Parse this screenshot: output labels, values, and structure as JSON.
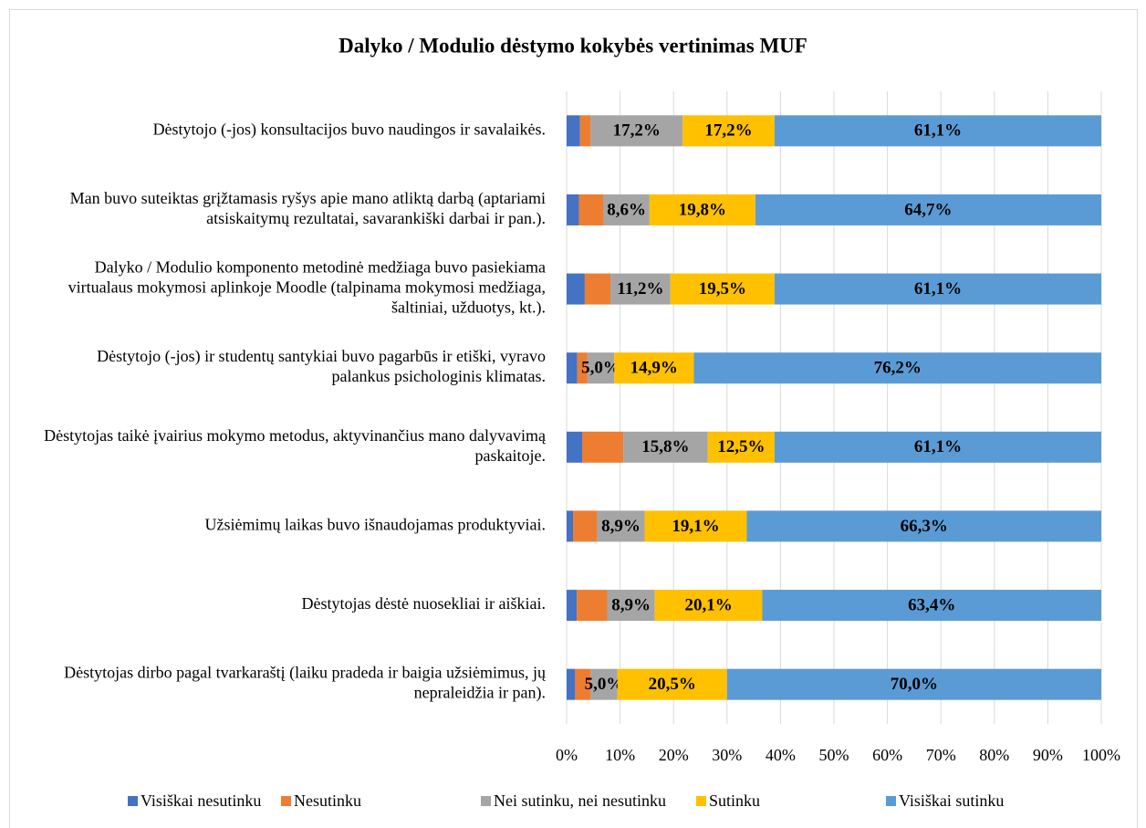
{
  "chart_data": {
    "type": "stacked-bar-horizontal",
    "title": "Dalyko / Modulio dėstymo kokybės vertinimas MUF",
    "categories": [
      "Dėstytojo (-jos) konsultacijos buvo naudingos ir savalaikės.",
      "Man buvo suteiktas grįžtamasis ryšys apie mano atliktą darbą (aptariami atsiskaitymų rezultatai, savarankiški darbai ir pan.).",
      "Dalyko / Modulio komponento metodinė medžiaga buvo pasiekiama virtualaus mokymosi aplinkoje Moodle (talpinama mokymosi medžiaga, šaltiniai, užduotys, kt.).",
      "Dėstytojo (-jos) ir studentų santykiai buvo pagarbūs ir etiški, vyravo palankus psichologinis klimatas.",
      "Dėstytojas taikė įvairius mokymo metodus, aktyvinančius mano dalyvavimą paskaitoje.",
      "Užsiėmimų laikas buvo išnaudojamas produktyviai.",
      "Dėstytojas dėstė nuosekliai ir aiškiai.",
      "Dėstytojas dirbo pagal tvarkaraštį (laiku pradeda ir baigia užsiėmimus, jų nepraleidžia ir pan)."
    ],
    "series": [
      {
        "name": "Visiškai nesutinku",
        "color": "#4472c4",
        "values": [
          2.5,
          2.3,
          3.4,
          2.0,
          2.9,
          1.2,
          1.9,
          1.6
        ],
        "value_labels": [
          null,
          null,
          null,
          null,
          null,
          null,
          null,
          null
        ]
      },
      {
        "name": "Nesutinku",
        "color": "#ed7d31",
        "values": [
          2.0,
          4.6,
          4.8,
          1.9,
          7.7,
          4.5,
          5.7,
          2.9
        ],
        "value_labels": [
          null,
          null,
          null,
          null,
          null,
          null,
          null,
          null
        ]
      },
      {
        "name": "Nei sutinku, nei nesutinku",
        "color": "#a5a5a5",
        "values": [
          17.2,
          8.6,
          11.2,
          5.0,
          15.8,
          8.9,
          8.9,
          5.0
        ],
        "value_labels": [
          "17,2%",
          "8,6%",
          "11,2%",
          "5,0%",
          "15,8%",
          "8,9%",
          "8,9%",
          "5,0%"
        ]
      },
      {
        "name": "Sutinku",
        "color": "#ffc000",
        "values": [
          17.2,
          19.8,
          19.5,
          14.9,
          12.5,
          19.1,
          20.1,
          20.5
        ],
        "value_labels": [
          "17,2%",
          "19,8%",
          "19,5%",
          "14,9%",
          "12,5%",
          "19,1%",
          "20,1%",
          "20,5%"
        ]
      },
      {
        "name": "Visiškai sutinku",
        "color": "#5b9bd5",
        "values": [
          61.1,
          64.7,
          61.1,
          76.2,
          61.1,
          66.3,
          63.4,
          70.0
        ],
        "value_labels": [
          "61,1%",
          "64,7%",
          "61,1%",
          "76,2%",
          "61,1%",
          "66,3%",
          "63,4%",
          "70,0%"
        ]
      }
    ],
    "xlim": [
      0,
      100
    ],
    "xticks": [
      {
        "value": 0,
        "label": "0%"
      },
      {
        "value": 10,
        "label": "10%"
      },
      {
        "value": 20,
        "label": "20%"
      },
      {
        "value": 30,
        "label": "30%"
      },
      {
        "value": 40,
        "label": "40%"
      },
      {
        "value": 50,
        "label": "50%"
      },
      {
        "value": 60,
        "label": "60%"
      },
      {
        "value": 70,
        "label": "70%"
      },
      {
        "value": 80,
        "label": "80%"
      },
      {
        "value": 90,
        "label": "90%"
      },
      {
        "value": 100,
        "label": "100%"
      }
    ],
    "grid": true,
    "legend": "bottom"
  }
}
